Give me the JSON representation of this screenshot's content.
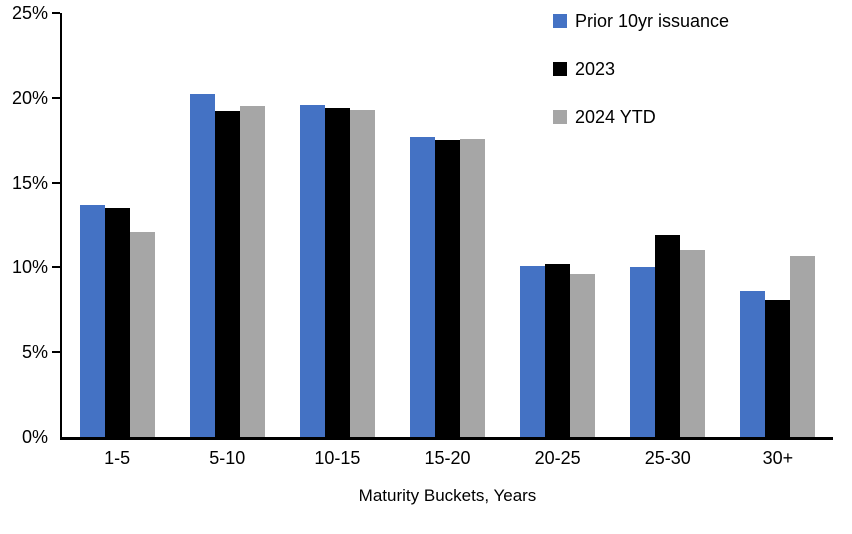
{
  "chart_data": {
    "type": "bar",
    "title": "",
    "xlabel": "Maturity Buckets, Years",
    "ylabel": "",
    "ylim": [
      0,
      25
    ],
    "ytick_step": 5,
    "ytick_labels": [
      "0%",
      "5%",
      "10%",
      "15%",
      "20%",
      "25%"
    ],
    "grid": false,
    "legend_position": "top-right-inside",
    "categories": [
      "1-5",
      "5-10",
      "10-15",
      "15-20",
      "20-25",
      "25-30",
      "30+"
    ],
    "series": [
      {
        "name": "Prior 10yr issuance",
        "color": "#4472C4",
        "values": [
          13.7,
          20.2,
          19.6,
          17.7,
          10.1,
          10.0,
          8.6
        ]
      },
      {
        "name": "2023",
        "color": "#000000",
        "values": [
          13.5,
          19.2,
          19.4,
          17.5,
          10.2,
          11.9,
          8.1
        ]
      },
      {
        "name": "2024 YTD",
        "color": "#A6A6A6",
        "values": [
          12.1,
          19.5,
          19.3,
          17.6,
          9.6,
          11.0,
          10.7
        ]
      }
    ]
  }
}
